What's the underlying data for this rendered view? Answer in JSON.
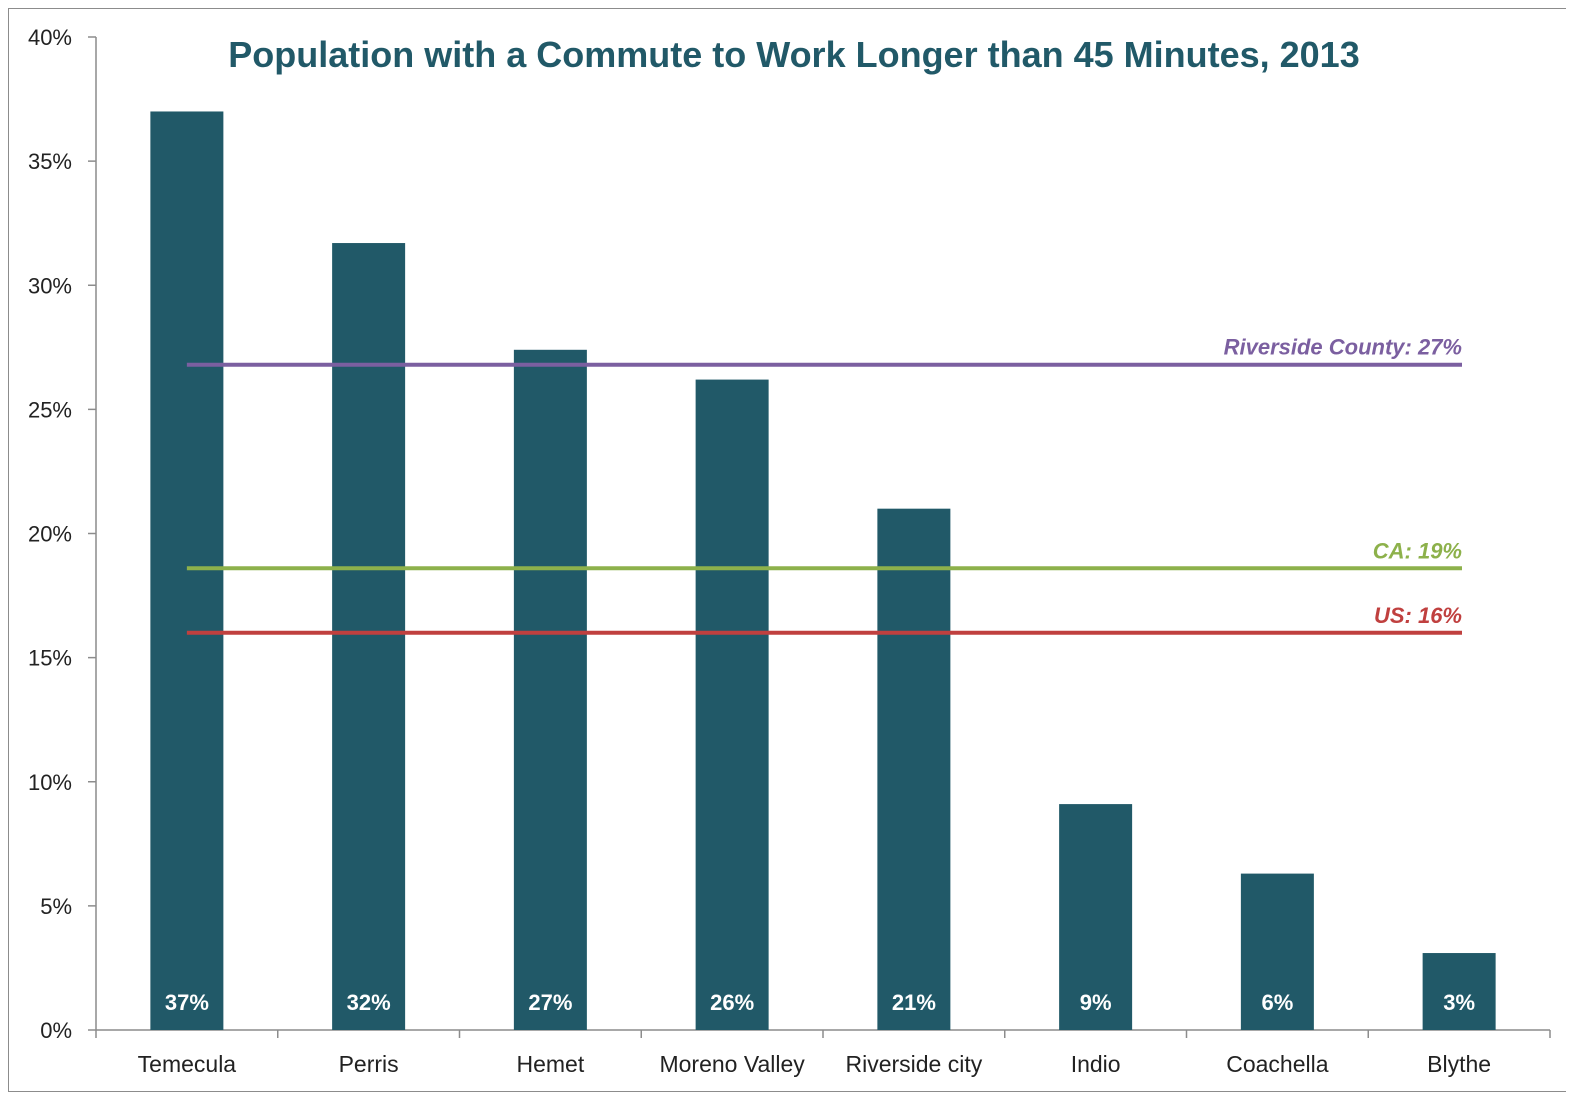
{
  "chart_data": {
    "type": "bar",
    "title": "Population with a Commute to Work Longer than 45 Minutes, 2013",
    "xlabel": "",
    "ylabel": "",
    "ylim": [
      0,
      40
    ],
    "yticks": [
      0,
      5,
      10,
      15,
      20,
      25,
      30,
      35,
      40
    ],
    "ytick_labels": [
      "0%",
      "5%",
      "10%",
      "15%",
      "20%",
      "25%",
      "30%",
      "35%",
      "40%"
    ],
    "grid": false,
    "categories": [
      "Temecula",
      "Perris",
      "Hemet",
      "Moreno Valley",
      "Riverside city",
      "Indio",
      "Coachella",
      "Blythe"
    ],
    "values": [
      37,
      31.7,
      27.4,
      26.2,
      21,
      9.1,
      6.3,
      3.1
    ],
    "data_labels": [
      "37%",
      "32%",
      "27%",
      "26%",
      "21%",
      "9%",
      "6%",
      "3%"
    ],
    "reference_lines": [
      {
        "label": "Riverside County: 27%",
        "value": 26.8,
        "color": "#7b5fa0"
      },
      {
        "label": "CA: 19%",
        "value": 18.6,
        "color": "#8db14b"
      },
      {
        "label": "US: 16%",
        "value": 16,
        "color": "#c0403f"
      }
    ],
    "colors": {
      "bar": "#215968",
      "title": "#215968",
      "axis": "#8c8c8c"
    }
  }
}
